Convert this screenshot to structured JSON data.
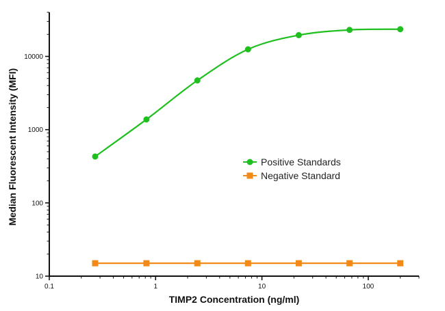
{
  "chart_data": {
    "type": "scatter",
    "xlabel": "TIMP2 Concentration (ng/ml)",
    "ylabel": "Median Fluorescent Intensity (MFI)",
    "xscale": "log",
    "yscale": "log",
    "xlim": [
      0.1,
      300
    ],
    "ylim": [
      10,
      40000
    ],
    "xticks": [
      0.1,
      1,
      10,
      100
    ],
    "xtick_labels": [
      "0.1",
      "1",
      "10",
      "100"
    ],
    "yticks": [
      10,
      100,
      1000,
      10000
    ],
    "ytick_labels": [
      "10",
      "100",
      "1000",
      "10000"
    ],
    "grid": false,
    "legend_position": "right-middle",
    "series": [
      {
        "name": "Positive Standards",
        "color": "#1fbf1f",
        "marker": "circle",
        "fit_line": true,
        "x": [
          0.27,
          0.82,
          2.47,
          7.4,
          22.2,
          66.7,
          200
        ],
        "y": [
          430,
          1380,
          4700,
          12500,
          19500,
          23000,
          23500
        ]
      },
      {
        "name": "Negative Standard",
        "color": "#f28a1a",
        "marker": "square",
        "fit_line": false,
        "x": [
          0.27,
          0.82,
          2.47,
          7.4,
          22.2,
          66.7,
          200
        ],
        "y": [
          15,
          15,
          15,
          15,
          15,
          15,
          15
        ]
      }
    ]
  }
}
